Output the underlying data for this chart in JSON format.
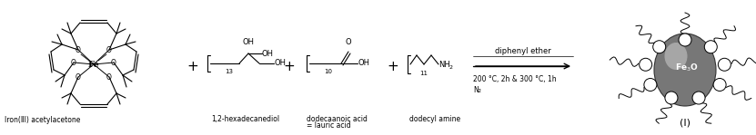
{
  "bg_color": "#ffffff",
  "line_color": "#000000",
  "fig_width": 8.31,
  "fig_height": 1.49,
  "dpi": 100,
  "label_iron": "Iron(ⅡI) acetylacetone",
  "label_diol": "1,2-hexadecanediol",
  "label_acid_1": "dodecaanoic acid",
  "label_acid_2": "= lauric acid",
  "label_amine": "dodecyl amine",
  "arrow_above": "diphenyl ether",
  "arrow_below1": "200 °C, 2h & 300 °C, 1h",
  "arrow_below2": "N₂",
  "product_label": "(I)"
}
